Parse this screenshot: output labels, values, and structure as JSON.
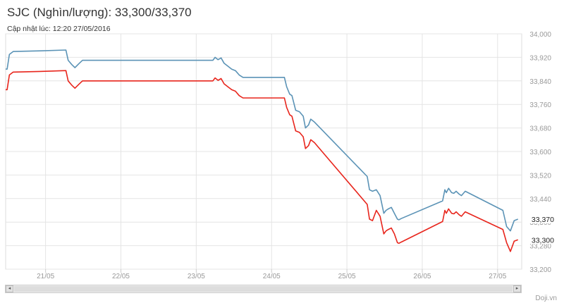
{
  "header": {
    "title": "SJC (Nghìn/lượng): 33,300/33,370",
    "updated": "Cập nhật lúc: 12:20 27/05/2016"
  },
  "credit": "Doji.vn",
  "scrollbar": {
    "left_arrow": "◂",
    "right_arrow": "▸"
  },
  "colors": {
    "sell": "#5b93b6",
    "buy": "#e8251c",
    "grid": "#e4e4e4",
    "axis_text": "#999999"
  },
  "chart_data": {
    "type": "line",
    "title": "SJC (Nghìn/lượng): 33,300/33,370",
    "subtitle": "Cập nhật lúc: 12:20 27/05/2016",
    "xlabel": "",
    "ylabel": "",
    "x_ticks": [
      {
        "label": "21/05",
        "pos": 0.53
      },
      {
        "label": "22/05",
        "pos": 1.53
      },
      {
        "label": "23/05",
        "pos": 2.53
      },
      {
        "label": "24/05",
        "pos": 3.53
      },
      {
        "label": "25/05",
        "pos": 4.53
      },
      {
        "label": "26/05",
        "pos": 5.53
      },
      {
        "label": "27/05",
        "pos": 6.53
      }
    ],
    "xlim": [
      0,
      6.85
    ],
    "ylim": [
      33200,
      34000
    ],
    "yticks": [
      33200,
      33280,
      33360,
      33440,
      33520,
      33600,
      33680,
      33760,
      33840,
      33920,
      34000
    ],
    "grid": true,
    "legend": "none",
    "last_values": [
      {
        "label": "33,370",
        "value": 33370,
        "series": "sell"
      },
      {
        "label": "33,300",
        "value": 33300,
        "series": "buy"
      }
    ],
    "series": [
      {
        "key": "sell",
        "x": [
          0,
          0.02,
          0.05,
          0.1,
          0.45,
          0.8,
          0.83,
          0.88,
          0.92,
          0.97,
          1.02,
          2.75,
          2.78,
          2.82,
          2.86,
          2.9,
          2.95,
          3.0,
          3.05,
          3.1,
          3.15,
          3.2,
          3.7,
          3.73,
          3.77,
          3.8,
          3.85,
          3.9,
          3.95,
          3.98,
          4.02,
          4.05,
          4.1,
          4.8,
          4.83,
          4.87,
          4.92,
          4.97,
          5.02,
          5.05,
          5.08,
          5.12,
          5.16,
          5.2,
          5.22,
          5.25,
          5.8,
          5.83,
          5.85,
          5.88,
          5.92,
          5.95,
          5.98,
          6.02,
          6.05,
          6.1,
          6.6,
          6.65,
          6.7,
          6.75,
          6.8
        ],
        "y": [
          33880,
          33880,
          33930,
          33940,
          33942,
          33945,
          33910,
          33895,
          33885,
          33898,
          33910,
          33910,
          33920,
          33912,
          33918,
          33900,
          33890,
          33880,
          33875,
          33860,
          33852,
          33852,
          33852,
          33820,
          33795,
          33790,
          33740,
          33735,
          33720,
          33680,
          33690,
          33710,
          33700,
          33515,
          33470,
          33465,
          33470,
          33450,
          33390,
          33400,
          33405,
          33410,
          33390,
          33370,
          33368,
          33372,
          33432,
          33470,
          33460,
          33475,
          33460,
          33458,
          33465,
          33455,
          33450,
          33465,
          33400,
          33345,
          33330,
          33365,
          33370
        ]
      },
      {
        "key": "buy",
        "x": [
          0,
          0.02,
          0.05,
          0.1,
          0.45,
          0.8,
          0.83,
          0.88,
          0.92,
          0.97,
          1.02,
          2.75,
          2.78,
          2.82,
          2.86,
          2.9,
          2.95,
          3.0,
          3.05,
          3.1,
          3.15,
          3.2,
          3.7,
          3.73,
          3.77,
          3.8,
          3.85,
          3.9,
          3.95,
          3.98,
          4.02,
          4.05,
          4.1,
          4.8,
          4.83,
          4.87,
          4.92,
          4.97,
          5.02,
          5.05,
          5.08,
          5.12,
          5.16,
          5.2,
          5.22,
          5.25,
          5.8,
          5.83,
          5.85,
          5.88,
          5.92,
          5.95,
          5.98,
          6.02,
          6.05,
          6.1,
          6.6,
          6.65,
          6.7,
          6.75,
          6.8
        ],
        "y": [
          33810,
          33810,
          33860,
          33870,
          33872,
          33875,
          33840,
          33825,
          33815,
          33828,
          33840,
          33840,
          33850,
          33842,
          33848,
          33830,
          33820,
          33810,
          33805,
          33790,
          33782,
          33782,
          33782,
          33750,
          33725,
          33720,
          33670,
          33665,
          33650,
          33610,
          33620,
          33640,
          33630,
          33420,
          33370,
          33365,
          33400,
          33380,
          33320,
          33330,
          33335,
          33340,
          33320,
          33290,
          33288,
          33292,
          33362,
          33400,
          33390,
          33405,
          33390,
          33388,
          33395,
          33385,
          33380,
          33395,
          33335,
          33290,
          33260,
          33295,
          33300
        ]
      }
    ]
  }
}
